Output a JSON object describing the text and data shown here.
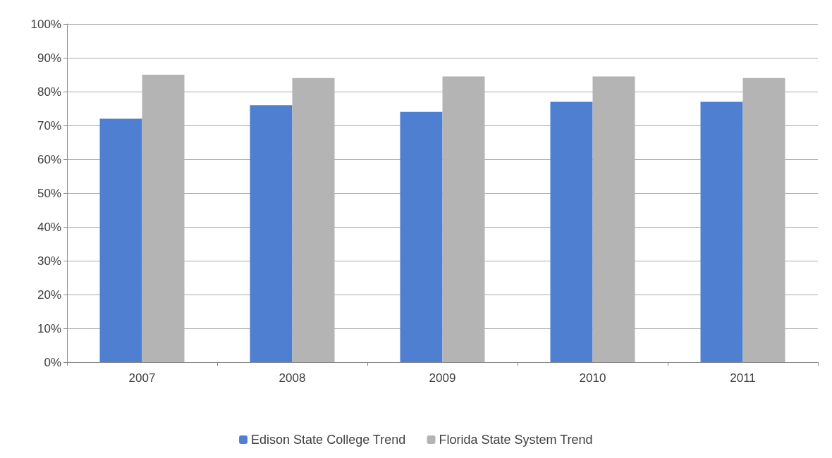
{
  "chart_data": {
    "type": "bar",
    "categories": [
      "2007",
      "2008",
      "2009",
      "2010",
      "2011"
    ],
    "series": [
      {
        "name": "Edison State College Trend",
        "color": "#4f7fd0",
        "values": [
          72,
          76,
          74,
          77,
          77
        ]
      },
      {
        "name": "Florida State System Trend",
        "color": "#b4b4b4",
        "values": [
          85,
          84,
          84.5,
          84.5,
          84
        ]
      }
    ],
    "ylim": [
      0,
      100
    ],
    "yticks": [
      {
        "value": 0,
        "label": "0%"
      },
      {
        "value": 10,
        "label": "10%"
      },
      {
        "value": 20,
        "label": "20%"
      },
      {
        "value": 30,
        "label": "30%"
      },
      {
        "value": 40,
        "label": "40%"
      },
      {
        "value": 50,
        "label": "50%"
      },
      {
        "value": 60,
        "label": "60%"
      },
      {
        "value": 70,
        "label": "70%"
      },
      {
        "value": 80,
        "label": "80%"
      },
      {
        "value": 90,
        "label": "90%"
      },
      {
        "value": 100,
        "label": "100%"
      }
    ],
    "grid": "y",
    "legend": "bottom"
  }
}
